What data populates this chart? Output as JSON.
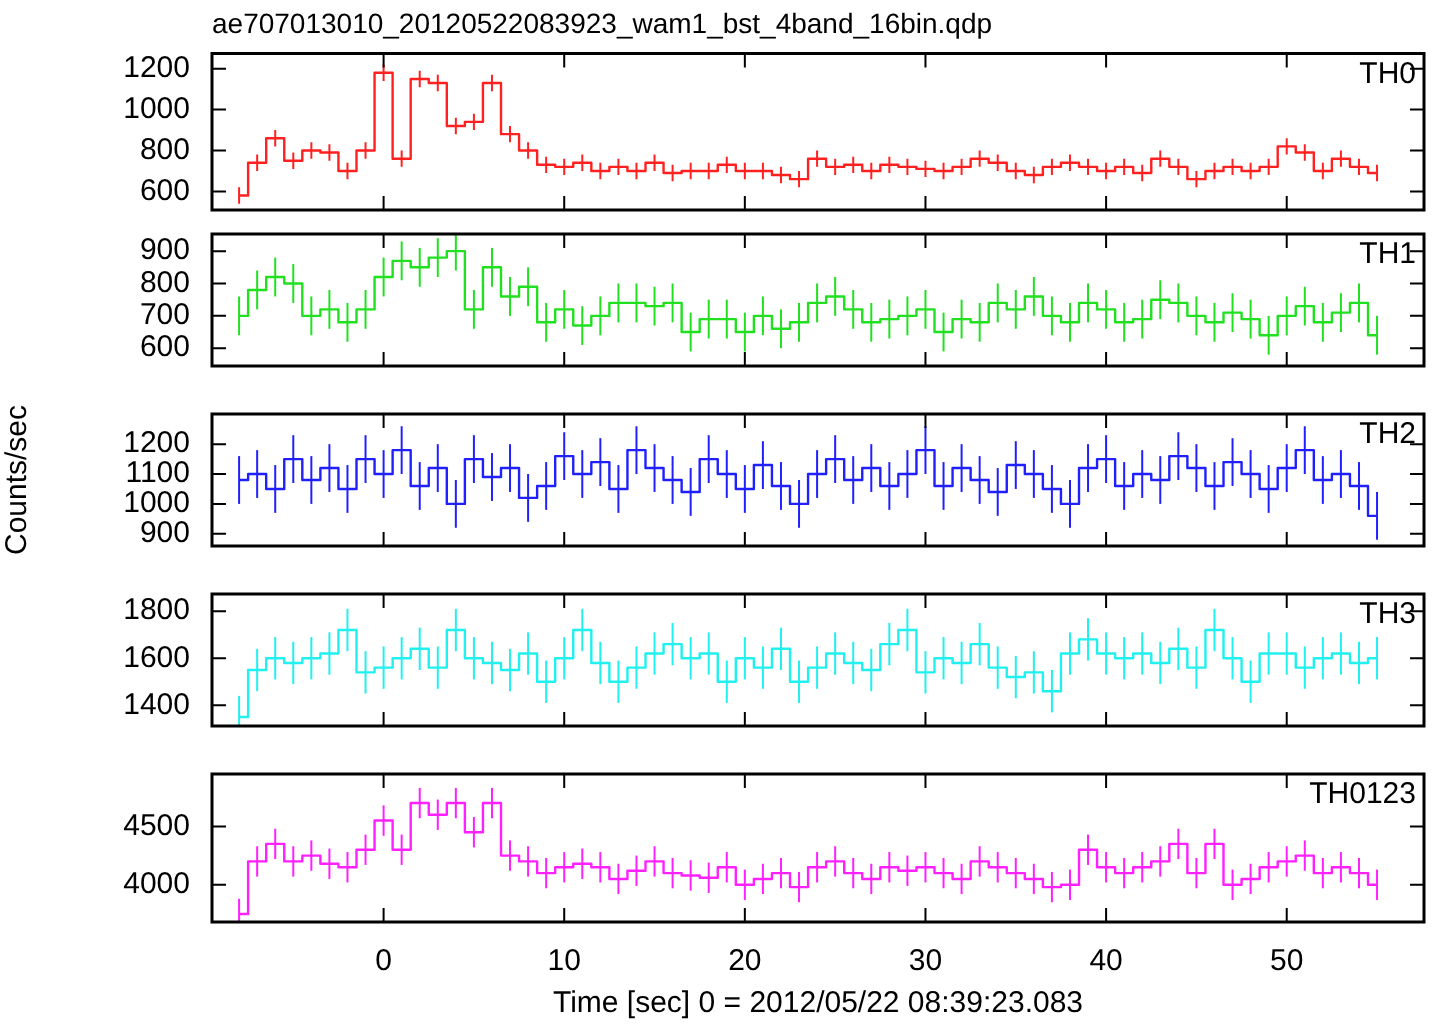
{
  "chart_data": [
    {
      "type": "step",
      "title": "ae707013010_20120522083923_wam1_bst_4band_16bin.qdp",
      "marker": "none",
      "tick_labels": "y",
      "x": [
        -8,
        -7,
        -6,
        -5,
        -4,
        -3,
        -2,
        -1,
        0,
        1,
        2,
        3,
        4,
        5,
        6,
        7,
        8,
        9,
        10,
        11,
        12,
        13,
        14,
        15,
        16,
        17,
        18,
        19,
        20,
        21,
        22,
        23,
        24,
        25,
        26,
        27,
        28,
        29,
        30,
        31,
        32,
        33,
        34,
        35,
        36,
        37,
        38,
        39,
        40,
        41,
        42,
        43,
        44,
        45,
        46,
        47,
        48,
        49,
        50,
        51,
        52,
        53,
        54,
        55
      ],
      "xlim": [
        -9.5,
        57.6
      ],
      "xticks": [
        0,
        10,
        20,
        30,
        40,
        50
      ],
      "ylim": [
        509,
        1274
      ],
      "yticks": [
        600,
        800,
        1000,
        1200
      ],
      "series": [
        {
          "name": "TH0",
          "color": "#ff2020",
          "values": [
            580,
            740,
            860,
            750,
            800,
            790,
            700,
            800,
            1180,
            760,
            1150,
            1130,
            920,
            940,
            1130,
            880,
            800,
            730,
            720,
            740,
            700,
            720,
            700,
            740,
            690,
            700,
            700,
            730,
            700,
            700,
            680,
            660,
            760,
            720,
            730,
            700,
            730,
            720,
            710,
            700,
            720,
            760,
            740,
            700,
            680,
            720,
            740,
            720,
            700,
            720,
            690,
            760,
            720,
            660,
            700,
            720,
            700,
            720,
            820,
            790,
            700,
            760,
            720,
            690
          ],
          "errors": [
            40,
            40,
            40,
            40,
            40,
            40,
            40,
            40,
            40,
            40,
            40,
            40,
            40,
            40,
            40,
            40,
            40,
            40,
            40,
            40,
            40,
            40,
            40,
            40,
            40,
            40,
            40,
            40,
            40,
            40,
            40,
            40,
            40,
            40,
            40,
            40,
            40,
            40,
            40,
            40,
            40,
            40,
            40,
            40,
            40,
            40,
            40,
            40,
            40,
            40,
            40,
            40,
            40,
            40,
            40,
            40,
            40,
            40,
            40,
            40,
            40,
            40,
            40,
            40
          ]
        }
      ]
    },
    {
      "type": "step",
      "marker": "none",
      "tick_labels": "y",
      "x": [
        -8,
        -7,
        -6,
        -5,
        -4,
        -3,
        -2,
        -1,
        0,
        1,
        2,
        3,
        4,
        5,
        6,
        7,
        8,
        9,
        10,
        11,
        12,
        13,
        14,
        15,
        16,
        17,
        18,
        19,
        20,
        21,
        22,
        23,
        24,
        25,
        26,
        27,
        28,
        29,
        30,
        31,
        32,
        33,
        34,
        35,
        36,
        37,
        38,
        39,
        40,
        41,
        42,
        43,
        44,
        45,
        46,
        47,
        48,
        49,
        50,
        51,
        52,
        53,
        54,
        55
      ],
      "xlim": [
        -9.5,
        57.6
      ],
      "xticks": [
        0,
        10,
        20,
        30,
        40,
        50
      ],
      "ylim": [
        545,
        953
      ],
      "yticks": [
        600,
        700,
        800,
        900
      ],
      "series": [
        {
          "name": "TH1",
          "color": "#20e020",
          "values": [
            700,
            780,
            820,
            800,
            700,
            720,
            680,
            720,
            820,
            870,
            850,
            880,
            900,
            720,
            850,
            760,
            790,
            680,
            720,
            670,
            700,
            740,
            740,
            730,
            740,
            650,
            690,
            690,
            650,
            700,
            660,
            680,
            740,
            760,
            720,
            680,
            690,
            700,
            720,
            650,
            690,
            680,
            740,
            720,
            760,
            700,
            680,
            740,
            720,
            680,
            690,
            750,
            740,
            700,
            680,
            710,
            690,
            640,
            700,
            730,
            680,
            710,
            740,
            640
          ],
          "errors": [
            60,
            60,
            60,
            60,
            60,
            60,
            60,
            60,
            60,
            60,
            60,
            60,
            60,
            60,
            60,
            60,
            60,
            60,
            60,
            60,
            60,
            60,
            60,
            60,
            60,
            60,
            60,
            60,
            60,
            60,
            60,
            60,
            60,
            60,
            60,
            60,
            60,
            60,
            60,
            60,
            60,
            60,
            60,
            60,
            60,
            60,
            60,
            60,
            60,
            60,
            60,
            60,
            60,
            60,
            60,
            60,
            60,
            60,
            60,
            60,
            60,
            60,
            60,
            60
          ]
        }
      ]
    },
    {
      "type": "step",
      "marker": "none",
      "tick_labels": "y",
      "ylabel": "Counts/sec",
      "x": [
        -8,
        -7,
        -6,
        -5,
        -4,
        -3,
        -2,
        -1,
        0,
        1,
        2,
        3,
        4,
        5,
        6,
        7,
        8,
        9,
        10,
        11,
        12,
        13,
        14,
        15,
        16,
        17,
        18,
        19,
        20,
        21,
        22,
        23,
        24,
        25,
        26,
        27,
        28,
        29,
        30,
        31,
        32,
        33,
        34,
        35,
        36,
        37,
        38,
        39,
        40,
        41,
        42,
        43,
        44,
        45,
        46,
        47,
        48,
        49,
        50,
        51,
        52,
        53,
        54,
        55
      ],
      "xlim": [
        -9.5,
        57.6
      ],
      "xticks": [
        0,
        10,
        20,
        30,
        40,
        50
      ],
      "ylim": [
        859,
        1301
      ],
      "yticks": [
        900,
        1000,
        1100,
        1200
      ],
      "series": [
        {
          "name": "TH2",
          "color": "#2020ff",
          "values": [
            1080,
            1100,
            1050,
            1150,
            1080,
            1120,
            1050,
            1150,
            1100,
            1180,
            1060,
            1120,
            1000,
            1150,
            1090,
            1120,
            1020,
            1060,
            1160,
            1100,
            1140,
            1050,
            1180,
            1120,
            1080,
            1040,
            1150,
            1100,
            1050,
            1130,
            1060,
            1000,
            1100,
            1150,
            1080,
            1120,
            1060,
            1100,
            1180,
            1060,
            1120,
            1080,
            1040,
            1130,
            1100,
            1050,
            1000,
            1120,
            1150,
            1060,
            1100,
            1080,
            1160,
            1120,
            1060,
            1140,
            1100,
            1050,
            1120,
            1180,
            1080,
            1100,
            1060,
            960
          ],
          "errors": [
            80,
            80,
            80,
            80,
            80,
            80,
            80,
            80,
            80,
            80,
            80,
            80,
            80,
            80,
            80,
            80,
            80,
            80,
            80,
            80,
            80,
            80,
            80,
            80,
            80,
            80,
            80,
            80,
            80,
            80,
            80,
            80,
            80,
            80,
            80,
            80,
            80,
            80,
            80,
            80,
            80,
            80,
            80,
            80,
            80,
            80,
            80,
            80,
            80,
            80,
            80,
            80,
            80,
            80,
            80,
            80,
            80,
            80,
            80,
            80,
            80,
            80,
            80,
            80
          ]
        }
      ]
    },
    {
      "type": "step",
      "marker": "none",
      "tick_labels": "y",
      "x": [
        -8,
        -7,
        -6,
        -5,
        -4,
        -3,
        -2,
        -1,
        0,
        1,
        2,
        3,
        4,
        5,
        6,
        7,
        8,
        9,
        10,
        11,
        12,
        13,
        14,
        15,
        16,
        17,
        18,
        19,
        20,
        21,
        22,
        23,
        24,
        25,
        26,
        27,
        28,
        29,
        30,
        31,
        32,
        33,
        34,
        35,
        36,
        37,
        38,
        39,
        40,
        41,
        42,
        43,
        44,
        45,
        46,
        47,
        48,
        49,
        50,
        51,
        52,
        53,
        54,
        55
      ],
      "xlim": [
        -9.5,
        57.6
      ],
      "xticks": [
        0,
        10,
        20,
        30,
        40,
        50
      ],
      "ylim": [
        1312,
        1873
      ],
      "yticks": [
        1400,
        1600,
        1800
      ],
      "series": [
        {
          "name": "TH3",
          "color": "#20f0f0",
          "values": [
            1350,
            1550,
            1600,
            1580,
            1600,
            1620,
            1720,
            1540,
            1560,
            1600,
            1640,
            1560,
            1720,
            1600,
            1580,
            1550,
            1620,
            1500,
            1600,
            1720,
            1580,
            1500,
            1560,
            1620,
            1660,
            1600,
            1620,
            1500,
            1600,
            1560,
            1640,
            1500,
            1560,
            1620,
            1580,
            1550,
            1660,
            1720,
            1540,
            1600,
            1580,
            1660,
            1560,
            1520,
            1540,
            1460,
            1620,
            1680,
            1620,
            1600,
            1620,
            1580,
            1640,
            1560,
            1720,
            1600,
            1500,
            1620,
            1620,
            1560,
            1600,
            1620,
            1580,
            1600
          ],
          "errors": [
            90,
            90,
            90,
            90,
            90,
            90,
            90,
            90,
            90,
            90,
            90,
            90,
            90,
            90,
            90,
            90,
            90,
            90,
            90,
            90,
            90,
            90,
            90,
            90,
            90,
            90,
            90,
            90,
            90,
            90,
            90,
            90,
            90,
            90,
            90,
            90,
            90,
            90,
            90,
            90,
            90,
            90,
            90,
            90,
            90,
            90,
            90,
            90,
            90,
            90,
            90,
            90,
            90,
            90,
            90,
            90,
            90,
            90,
            90,
            90,
            90,
            90,
            90,
            90
          ]
        }
      ]
    },
    {
      "type": "step",
      "marker": "none",
      "xlabel": "Time [sec] 0 = 2012/05/22 08:39:23.083",
      "x": [
        -8,
        -7,
        -6,
        -5,
        -4,
        -3,
        -2,
        -1,
        0,
        1,
        2,
        3,
        4,
        5,
        6,
        7,
        8,
        9,
        10,
        11,
        12,
        13,
        14,
        15,
        16,
        17,
        18,
        19,
        20,
        21,
        22,
        23,
        24,
        25,
        26,
        27,
        28,
        29,
        30,
        31,
        32,
        33,
        34,
        35,
        36,
        37,
        38,
        39,
        40,
        41,
        42,
        43,
        44,
        45,
        46,
        47,
        48,
        49,
        50,
        51,
        52,
        53,
        54,
        55
      ],
      "xlim": [
        -9.5,
        57.6
      ],
      "xticks": [
        0,
        10,
        20,
        30,
        40,
        50
      ],
      "ylim": [
        3681,
        4949
      ],
      "yticks": [
        4000,
        4500
      ],
      "series": [
        {
          "name": "TH0123",
          "color": "#ff20ff",
          "values": [
            3750,
            4200,
            4350,
            4200,
            4250,
            4180,
            4150,
            4300,
            4550,
            4300,
            4700,
            4600,
            4700,
            4450,
            4700,
            4250,
            4200,
            4100,
            4150,
            4180,
            4150,
            4050,
            4120,
            4200,
            4100,
            4080,
            4060,
            4150,
            4000,
            4050,
            4100,
            3980,
            4150,
            4200,
            4100,
            4050,
            4150,
            4120,
            4150,
            4100,
            4050,
            4200,
            4150,
            4100,
            4050,
            3980,
            4000,
            4300,
            4150,
            4100,
            4150,
            4200,
            4350,
            4100,
            4350,
            4000,
            4050,
            4150,
            4200,
            4250,
            4100,
            4150,
            4100,
            4000
          ],
          "errors": [
            130,
            130,
            130,
            130,
            130,
            130,
            130,
            130,
            130,
            130,
            130,
            130,
            130,
            130,
            130,
            130,
            130,
            130,
            130,
            130,
            130,
            130,
            130,
            130,
            130,
            130,
            130,
            130,
            130,
            130,
            130,
            130,
            130,
            130,
            130,
            130,
            130,
            130,
            130,
            130,
            130,
            130,
            130,
            130,
            130,
            130,
            130,
            130,
            130,
            130,
            130,
            130,
            130,
            130,
            130,
            130,
            130,
            130,
            130,
            130,
            130,
            130,
            130,
            130
          ]
        }
      ]
    }
  ]
}
